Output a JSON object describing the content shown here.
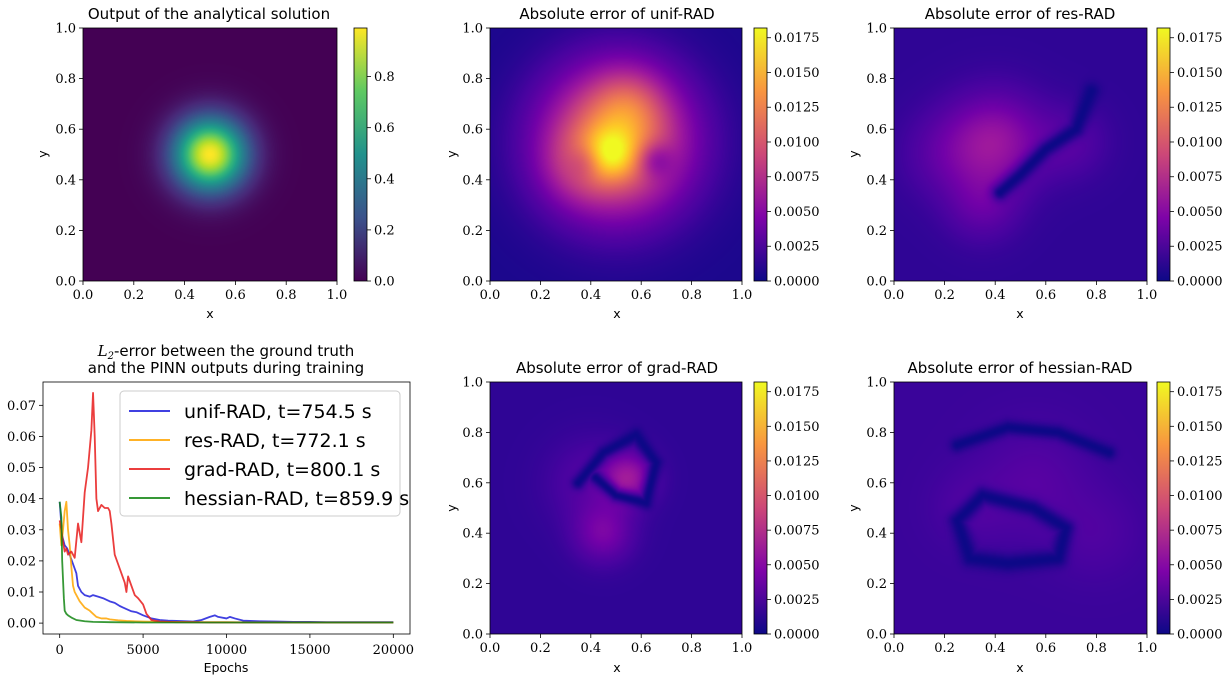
{
  "figure": {
    "panels": {
      "analytical": {
        "title": "Output of the analytical solution",
        "xlabel": "x",
        "ylabel": "y"
      },
      "unif": {
        "title": "Absolute error of unif-RAD",
        "xlabel": "x",
        "ylabel": "y"
      },
      "res": {
        "title": "Absolute error of res-RAD",
        "xlabel": "x",
        "ylabel": "y"
      },
      "grad": {
        "title": "Absolute error of grad-RAD",
        "xlabel": "x",
        "ylabel": "y"
      },
      "hessian": {
        "title": "Absolute error of hessian-RAD",
        "xlabel": "x",
        "ylabel": "y"
      }
    },
    "line_panel": {
      "title_line1_math": "L",
      "title_line1_sub": "2",
      "title_line1_rest": "-error between the ground truth",
      "title_line2": "and the PINN outputs during training",
      "xlabel": "Epochs"
    }
  },
  "chart_data": [
    {
      "type": "heatmap",
      "title": "Output of the analytical solution",
      "xlabel": "x",
      "ylabel": "y",
      "xlim": [
        0,
        1
      ],
      "ylim": [
        0,
        1
      ],
      "xticks": [
        "0.0",
        "0.2",
        "0.4",
        "0.6",
        "0.8",
        "1.0"
      ],
      "yticks": [
        "0.0",
        "0.2",
        "0.4",
        "0.6",
        "0.8",
        "1.0"
      ],
      "colormap": "viridis",
      "colorbar": {
        "min": 0,
        "max": 0.99,
        "ticks": [
          "0.0",
          "0.2",
          "0.4",
          "0.6",
          "0.8"
        ]
      },
      "field": "gaussian bump centered at (0.5, 0.5), peak ~0.99, width ~0.1"
    },
    {
      "type": "heatmap",
      "title": "Absolute error of unif-RAD",
      "xlabel": "x",
      "ylabel": "y",
      "xlim": [
        0,
        1
      ],
      "ylim": [
        0,
        1
      ],
      "xticks": [
        "0.0",
        "0.2",
        "0.4",
        "0.6",
        "0.8",
        "1.0"
      ],
      "yticks": [
        "0.0",
        "0.2",
        "0.4",
        "0.6",
        "0.8",
        "1.0"
      ],
      "colormap": "plasma",
      "colorbar": {
        "min": 0,
        "max": 0.0182,
        "ticks": [
          "0.0000",
          "0.0025",
          "0.0050",
          "0.0075",
          "0.0100",
          "0.0125",
          "0.0150",
          "0.0175"
        ]
      },
      "field": "broad high-error blob over center, max ~0.018 near (0.47, 0.5)"
    },
    {
      "type": "heatmap",
      "title": "Absolute error of res-RAD",
      "xlabel": "x",
      "ylabel": "y",
      "xlim": [
        0,
        1
      ],
      "ylim": [
        0,
        1
      ],
      "xticks": [
        "0.0",
        "0.2",
        "0.4",
        "0.6",
        "0.8",
        "1.0"
      ],
      "yticks": [
        "0.0",
        "0.2",
        "0.4",
        "0.6",
        "0.8",
        "1.0"
      ],
      "colormap": "plasma",
      "colorbar": {
        "min": 0,
        "max": 0.0182,
        "ticks": [
          "0.0000",
          "0.0025",
          "0.0050",
          "0.0075",
          "0.0100",
          "0.0125",
          "0.0150",
          "0.0175"
        ]
      },
      "field": "low error, moderate region ~0.006 around (0.4, 0.5)"
    },
    {
      "type": "line",
      "title": "L2-error between the ground truth and the PINN outputs during training",
      "xlabel": "Epochs",
      "ylabel": "",
      "xlim": [
        -1000,
        21000
      ],
      "ylim": [
        -0.0035,
        0.0775
      ],
      "xticks": [
        0,
        5000,
        10000,
        15000,
        20000
      ],
      "yticks": [
        "0.00",
        "0.01",
        "0.02",
        "0.03",
        "0.04",
        "0.05",
        "0.06",
        "0.07"
      ],
      "legend_position": "top-right",
      "series": [
        {
          "name": "unif-RAD, t=754.5 s",
          "color": "#1f1fdc",
          "x": [
            0,
            150,
            300,
            450,
            600,
            800,
            1000,
            1100,
            1300,
            1500,
            1800,
            2000,
            2300,
            2600,
            3000,
            3300,
            3600,
            3800,
            4000,
            4300,
            4600,
            5000,
            5500,
            6000,
            6500,
            7000,
            8000,
            8500,
            9000,
            9300,
            9500,
            10000,
            10200,
            10500,
            11000,
            12000,
            13000,
            14000,
            15000,
            16000,
            17000,
            18000,
            19000,
            20000
          ],
          "y": [
            0.039,
            0.028,
            0.025,
            0.024,
            0.022,
            0.019,
            0.016,
            0.012,
            0.01,
            0.009,
            0.0085,
            0.009,
            0.0085,
            0.008,
            0.007,
            0.0065,
            0.0055,
            0.005,
            0.0045,
            0.0038,
            0.0035,
            0.0025,
            0.0015,
            0.001,
            0.0008,
            0.0007,
            0.0005,
            0.001,
            0.002,
            0.0025,
            0.002,
            0.0015,
            0.002,
            0.0015,
            0.0008,
            0.0006,
            0.0005,
            0.0004,
            0.0004,
            0.0003,
            0.0003,
            0.0003,
            0.0003,
            0.0003
          ]
        },
        {
          "name": "res-RAD, t=772.1 s",
          "color": "#ffa500",
          "x": [
            0,
            100,
            200,
            300,
            400,
            500,
            600,
            700,
            800,
            900,
            1000,
            1200,
            1500,
            1800,
            2000,
            2200,
            2500,
            2800,
            3000,
            3500,
            4000,
            5000,
            6000,
            8000,
            10000,
            12000,
            15000,
            20000
          ],
          "y": [
            0.032,
            0.025,
            0.03,
            0.036,
            0.039,
            0.03,
            0.025,
            0.018,
            0.012,
            0.01,
            0.009,
            0.007,
            0.005,
            0.004,
            0.003,
            0.002,
            0.0015,
            0.0015,
            0.0012,
            0.0009,
            0.0007,
            0.0005,
            0.0004,
            0.0003,
            0.0003,
            0.0002,
            0.0002,
            0.0002
          ]
        },
        {
          "name": "grad-RAD, t=800.1 s",
          "color": "#e81b1b",
          "x": [
            0,
            100,
            200,
            300,
            400,
            500,
            700,
            900,
            1100,
            1300,
            1500,
            1700,
            1900,
            2000,
            2100,
            2200,
            2300,
            2500,
            2700,
            2900,
            3000,
            3100,
            3200,
            3300,
            3500,
            3700,
            3900,
            4000,
            4100,
            4300,
            4500,
            4700,
            5000,
            5200,
            5500,
            6000,
            7000,
            8000,
            9000,
            10000,
            12000,
            15000,
            20000
          ],
          "y": [
            0.033,
            0.03,
            0.026,
            0.023,
            0.024,
            0.022,
            0.023,
            0.021,
            0.032,
            0.026,
            0.042,
            0.05,
            0.062,
            0.074,
            0.06,
            0.04,
            0.036,
            0.038,
            0.037,
            0.037,
            0.036,
            0.032,
            0.027,
            0.022,
            0.019,
            0.016,
            0.013,
            0.01,
            0.015,
            0.012,
            0.009,
            0.008,
            0.006,
            0.003,
            0.001,
            0.0005,
            0.0003,
            0.0003,
            0.0002,
            0.0002,
            0.0002,
            0.0002,
            0.0002
          ]
        },
        {
          "name": "hessian-RAD, t=859.9 s",
          "color": "#138613",
          "x": [
            0,
            100,
            150,
            200,
            250,
            300,
            400,
            500,
            700,
            1000,
            1500,
            2000,
            3000,
            5000,
            8000,
            12000,
            16000,
            20000
          ],
          "y": [
            0.039,
            0.034,
            0.02,
            0.014,
            0.008,
            0.004,
            0.003,
            0.0025,
            0.0018,
            0.001,
            0.0006,
            0.0004,
            0.0003,
            0.0002,
            0.0002,
            0.0002,
            0.0002,
            0.0002
          ]
        }
      ]
    },
    {
      "type": "heatmap",
      "title": "Absolute error of grad-RAD",
      "xlabel": "x",
      "ylabel": "y",
      "xlim": [
        0,
        1
      ],
      "ylim": [
        0,
        1
      ],
      "xticks": [
        "0.0",
        "0.2",
        "0.4",
        "0.6",
        "0.8",
        "1.0"
      ],
      "yticks": [
        "0.0",
        "0.2",
        "0.4",
        "0.6",
        "0.8",
        "1.0"
      ],
      "colormap": "plasma",
      "colorbar": {
        "min": 0,
        "max": 0.0182,
        "ticks": [
          "0.0000",
          "0.0025",
          "0.0050",
          "0.0075",
          "0.0100",
          "0.0125",
          "0.0150",
          "0.0175"
        ]
      },
      "field": "low error, peak ~0.006 near (0.55, 0.62)"
    },
    {
      "type": "heatmap",
      "title": "Absolute error of hessian-RAD",
      "xlabel": "x",
      "ylabel": "y",
      "xlim": [
        0,
        1
      ],
      "ylim": [
        0,
        1
      ],
      "xticks": [
        "0.0",
        "0.2",
        "0.4",
        "0.6",
        "0.8",
        "1.0"
      ],
      "yticks": [
        "0.0",
        "0.2",
        "0.4",
        "0.6",
        "0.8",
        "1.0"
      ],
      "colormap": "plasma",
      "colorbar": {
        "min": 0,
        "max": 0.0182,
        "ticks": [
          "0.0000",
          "0.0025",
          "0.0050",
          "0.0075",
          "0.0100",
          "0.0125",
          "0.0150",
          "0.0175"
        ]
      },
      "field": "low error, mostly ~0.002-0.003"
    }
  ]
}
